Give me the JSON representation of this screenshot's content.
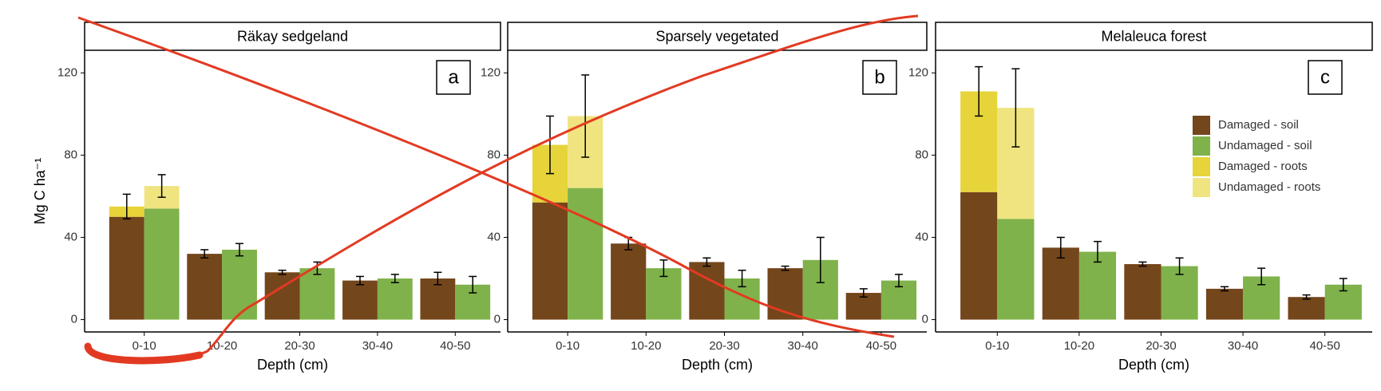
{
  "chart_data": [
    {
      "type": "bar",
      "title": "Räkay sedgeland",
      "panel_label": "a",
      "ylabel": "Mg C ha⁻¹",
      "xlabel": "Depth (cm)",
      "categories": [
        "0-10",
        "10-20",
        "20-30",
        "30-40",
        "40-50"
      ],
      "ylim": [
        -6,
        131
      ],
      "yticks": [
        0,
        40,
        80,
        120
      ],
      "grid": false,
      "series": [
        {
          "name": "Damaged - soil",
          "color": "#74461b",
          "values": [
            50,
            32,
            23,
            19,
            20
          ],
          "errors": [
            6,
            2,
            1,
            2,
            3
          ]
        },
        {
          "name": "Undamaged - soil",
          "color": "#7fb24a",
          "values": [
            54,
            34,
            25,
            20,
            17
          ],
          "errors": [
            5.5,
            3,
            3,
            2,
            4
          ]
        },
        {
          "name": "Damaged - roots",
          "color": "#e6d43a",
          "values": [
            5,
            null,
            null,
            null,
            null
          ]
        },
        {
          "name": "Undamaged - roots",
          "color": "#f0e480",
          "values": [
            11,
            null,
            null,
            null,
            null
          ]
        }
      ]
    },
    {
      "type": "bar",
      "title": "Sparsely vegetated",
      "panel_label": "b",
      "xlabel": "Depth (cm)",
      "categories": [
        "0-10",
        "10-20",
        "20-30",
        "30-40",
        "40-50"
      ],
      "ylim": [
        -6,
        131
      ],
      "yticks": [
        0,
        40,
        80,
        120
      ],
      "grid": false,
      "series": [
        {
          "name": "Damaged - soil",
          "color": "#74461b",
          "values": [
            57,
            37,
            28,
            25,
            13
          ],
          "errors": [
            14,
            3,
            2,
            1,
            2
          ]
        },
        {
          "name": "Undamaged - soil",
          "color": "#7fb24a",
          "values": [
            64,
            25,
            20,
            29,
            19
          ],
          "errors": [
            20,
            4,
            4,
            11,
            3
          ]
        },
        {
          "name": "Damaged - roots",
          "color": "#e6d43a",
          "values": [
            28,
            null,
            null,
            null,
            null
          ]
        },
        {
          "name": "Undamaged - roots",
          "color": "#f0e480",
          "values": [
            35,
            null,
            null,
            null,
            null
          ]
        }
      ]
    },
    {
      "type": "bar",
      "title": "Melaleuca forest",
      "panel_label": "c",
      "xlabel": "Depth (cm)",
      "legend": "right",
      "categories": [
        "0-10",
        "10-20",
        "20-30",
        "30-40",
        "40-50"
      ],
      "ylim": [
        -6,
        131
      ],
      "yticks": [
        0,
        40,
        80,
        120
      ],
      "grid": false,
      "series": [
        {
          "name": "Damaged - soil",
          "color": "#74461b",
          "values": [
            62,
            35,
            27,
            15,
            11
          ],
          "errors": [
            12,
            5,
            1,
            1,
            1
          ]
        },
        {
          "name": "Undamaged - soil",
          "color": "#7fb24a",
          "values": [
            49,
            33,
            26,
            21,
            17
          ],
          "errors": [
            19,
            5,
            4,
            4,
            3
          ]
        },
        {
          "name": "Damaged - roots",
          "color": "#e6d43a",
          "values": [
            49,
            null,
            null,
            null,
            null
          ]
        },
        {
          "name": "Undamaged - roots",
          "color": "#f0e480",
          "values": [
            54,
            null,
            null,
            null,
            null
          ]
        }
      ]
    }
  ]
}
